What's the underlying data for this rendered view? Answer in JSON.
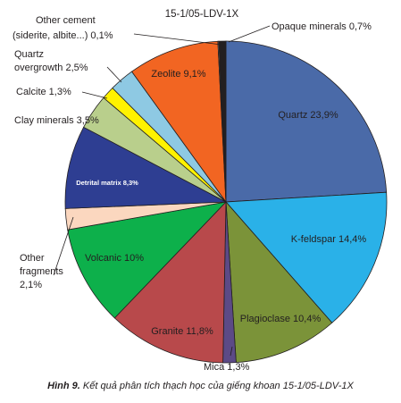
{
  "chart_data": {
    "type": "pie",
    "title": "15-1/05-LDV-1X",
    "slices": [
      {
        "label": "Quartz 23,9%",
        "value": 23.9,
        "color": "#4a6aa8"
      },
      {
        "label": "K-feldspar 14,4%",
        "value": 14.4,
        "color": "#2ab1e8"
      },
      {
        "label": "Plagioclase 10,4%",
        "value": 10.4,
        "color": "#7b9339"
      },
      {
        "label": "Mica 1,3%",
        "value": 1.3,
        "color": "#5c4a86"
      },
      {
        "label": "Granite 11,8%",
        "value": 11.8,
        "color": "#b8494b"
      },
      {
        "label": "Volcanic 10%",
        "value": 10.0,
        "color": "#0db04b"
      },
      {
        "label": "Other fragments 2,1%",
        "value": 2.1,
        "color": "#fbd7bf"
      },
      {
        "label": "Detrital matrix 8,3%",
        "value": 8.3,
        "color": "#2e3e92"
      },
      {
        "label": "Clay minerals 3,5%",
        "value": 3.5,
        "color": "#b9cf8c"
      },
      {
        "label": "Calcite 1,3%",
        "value": 1.3,
        "color": "#fff200"
      },
      {
        "label": "Quartz overgrowth 2,5%",
        "value": 2.5,
        "color": "#8ec9e3"
      },
      {
        "label": "Zeolite 9,1%",
        "value": 9.1,
        "color": "#f26522"
      },
      {
        "label": "Other cement (siderite, albite...) 0,1%",
        "value": 0.1,
        "color": "#9e9e9e"
      },
      {
        "label": "Opaque minerals 0,7%",
        "value": 0.7,
        "color": "#231f20"
      }
    ],
    "labels_text": {
      "quartz": "Quartz 23,9%",
      "kfeldspar": "K-feldspar 14,4%",
      "plagioclase": "Plagioclase 10,4%",
      "mica": "Mica 1,3%",
      "granite": "Granite 11,8%",
      "volcanic": "Volcanic 10%",
      "other_fragments_1": "Other",
      "other_fragments_2": "fragments",
      "other_fragments_3": "2,1%",
      "detrital": "Detrital matrix  8,3%",
      "clay": "Clay minerals 3,5%",
      "calcite": "Calcite 1,3%",
      "quartz_og_1": "Quartz",
      "quartz_og_2": "overgrowth 2,5%",
      "zeolite": "Zeolite 9,1%",
      "other_cement_1": "Other cement",
      "other_cement_2": "(siderite, albite...) 0,1%",
      "opaque": "Opaque minerals 0,7%"
    }
  },
  "caption": {
    "label": "Hình 9.",
    "text": " Kết quả phân tích thạch học của giếng khoan 15-1/05-LDV-1X"
  }
}
